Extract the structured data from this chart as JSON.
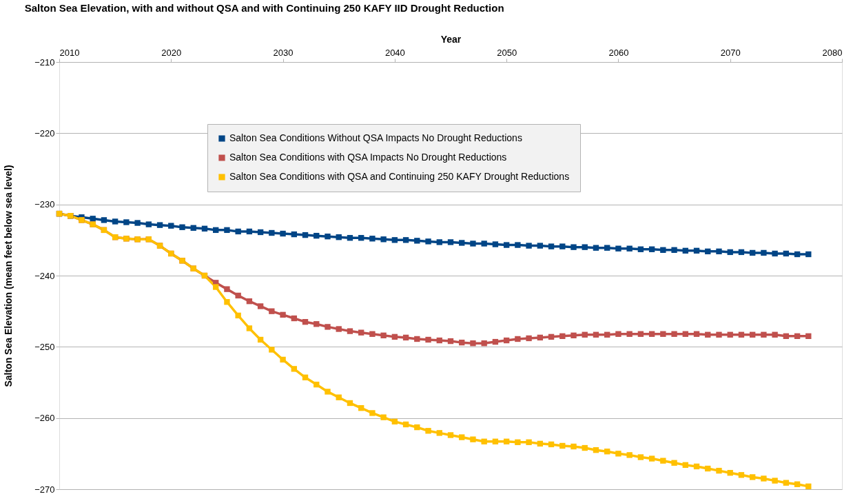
{
  "chart_data": {
    "type": "line",
    "title": "Salton Sea Elevation, with and without QSA and with Continuing 250 KAFY IID Drought Reduction",
    "xlabel": "Year",
    "ylabel": "Salton Sea Elevation (mean feet below sea level)",
    "x": [
      2010,
      2011,
      2012,
      2013,
      2014,
      2015,
      2016,
      2017,
      2018,
      2019,
      2020,
      2021,
      2022,
      2023,
      2024,
      2025,
      2026,
      2027,
      2028,
      2029,
      2030,
      2031,
      2032,
      2033,
      2034,
      2035,
      2036,
      2037,
      2038,
      2039,
      2040,
      2041,
      2042,
      2043,
      2044,
      2045,
      2046,
      2047,
      2048,
      2049,
      2050,
      2051,
      2052,
      2053,
      2054,
      2055,
      2056,
      2057,
      2058,
      2059,
      2060,
      2061,
      2062,
      2063,
      2064,
      2065,
      2066,
      2067,
      2068,
      2069,
      2070,
      2071,
      2072,
      2073,
      2074,
      2075,
      2076,
      2077
    ],
    "xlim": [
      2010,
      2080
    ],
    "xticks": [
      2010,
      2020,
      2030,
      2040,
      2050,
      2060,
      2070,
      2080
    ],
    "ylim": [
      -270,
      -210
    ],
    "yticks": [
      -270,
      -260,
      -250,
      -240,
      -230,
      -220,
      -210
    ],
    "grid": "y",
    "legend": "top",
    "marker": "square",
    "line_style": "solid",
    "series": [
      {
        "name": "Salton Sea Conditions Without QSA Impacts No Drought Reductions",
        "color": "#004586",
        "values": [
          -231.3,
          -231.6,
          -231.8,
          -232.0,
          -232.2,
          -232.4,
          -232.5,
          -232.6,
          -232.8,
          -232.9,
          -233.0,
          -233.2,
          -233.3,
          -233.4,
          -233.6,
          -233.6,
          -233.8,
          -233.8,
          -233.9,
          -234.0,
          -234.1,
          -234.2,
          -234.3,
          -234.4,
          -234.5,
          -234.6,
          -234.7,
          -234.7,
          -234.8,
          -234.9,
          -235.0,
          -235.0,
          -235.1,
          -235.2,
          -235.3,
          -235.3,
          -235.4,
          -235.5,
          -235.5,
          -235.6,
          -235.7,
          -235.7,
          -235.8,
          -235.8,
          -235.9,
          -235.9,
          -236.0,
          -236.0,
          -236.1,
          -236.1,
          -236.2,
          -236.2,
          -236.3,
          -236.3,
          -236.4,
          -236.4,
          -236.5,
          -236.5,
          -236.6,
          -236.6,
          -236.7,
          -236.7,
          -236.8,
          -236.8,
          -236.9,
          -236.9,
          -237.0,
          -237.0
        ]
      },
      {
        "name": "Salton Sea Conditions with QSA Impacts No Drought Reductions",
        "color": "#c0504d",
        "values": [
          -231.3,
          -231.6,
          -232.2,
          -232.8,
          -233.6,
          -234.6,
          -234.8,
          -234.9,
          -234.9,
          -235.8,
          -236.9,
          -237.9,
          -239.0,
          -240.0,
          -241.0,
          -241.9,
          -242.8,
          -243.6,
          -244.3,
          -245.0,
          -245.5,
          -246.0,
          -246.5,
          -246.8,
          -247.2,
          -247.5,
          -247.8,
          -248.0,
          -248.2,
          -248.4,
          -248.6,
          -248.7,
          -248.9,
          -249.0,
          -249.1,
          -249.2,
          -249.4,
          -249.5,
          -249.5,
          -249.3,
          -249.1,
          -248.9,
          -248.8,
          -248.7,
          -248.6,
          -248.5,
          -248.4,
          -248.3,
          -248.3,
          -248.3,
          -248.2,
          -248.2,
          -248.2,
          -248.2,
          -248.2,
          -248.2,
          -248.2,
          -248.2,
          -248.3,
          -248.3,
          -248.3,
          -248.3,
          -248.3,
          -248.3,
          -248.3,
          -248.5,
          -248.5,
          -248.5
        ]
      },
      {
        "name": "Salton Sea Conditions with QSA and Continuing 250 KAFY Drought Reductions",
        "color": "#ffc000",
        "values": [
          -231.3,
          -231.6,
          -232.2,
          -232.8,
          -233.6,
          -234.6,
          -234.8,
          -234.9,
          -234.9,
          -235.8,
          -236.9,
          -237.9,
          -239.0,
          -240.0,
          -241.6,
          -243.7,
          -245.6,
          -247.4,
          -249.0,
          -250.4,
          -251.8,
          -253.1,
          -254.3,
          -255.3,
          -256.3,
          -257.1,
          -257.9,
          -258.6,
          -259.3,
          -259.9,
          -260.5,
          -260.9,
          -261.3,
          -261.8,
          -262.1,
          -262.4,
          -262.7,
          -263.0,
          -263.3,
          -263.3,
          -263.3,
          -263.4,
          -263.4,
          -263.6,
          -263.7,
          -263.9,
          -264.0,
          -264.2,
          -264.5,
          -264.7,
          -265.0,
          -265.2,
          -265.5,
          -265.7,
          -266.0,
          -266.3,
          -266.6,
          -266.8,
          -267.1,
          -267.4,
          -267.7,
          -268.0,
          -268.3,
          -268.5,
          -268.8,
          -269.1,
          -269.3,
          -269.6
        ]
      }
    ]
  }
}
